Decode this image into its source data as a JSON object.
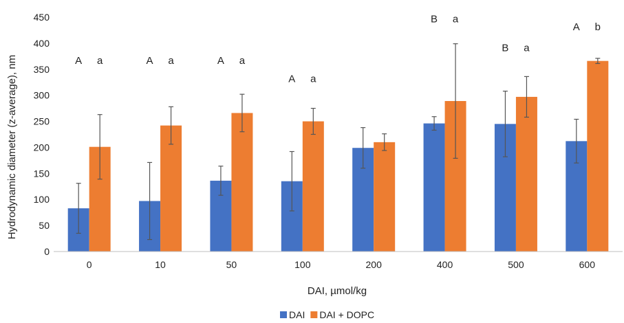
{
  "chart_data": {
    "type": "bar",
    "ylabel": "Hydrodynamic diameter (z-average), nm",
    "xlabel": "DAI, µmol/kg",
    "ylim": [
      0,
      450
    ],
    "yticks": [
      0,
      50,
      100,
      150,
      200,
      250,
      300,
      350,
      400,
      450
    ],
    "grid": false,
    "legend_position": "bottom",
    "categories": [
      "0",
      "10",
      "50",
      "100",
      "200",
      "400",
      "500",
      "600"
    ],
    "series": [
      {
        "name": "DAI",
        "color": "#4472C4",
        "values": [
          83,
          97,
          136,
          135,
          199,
          246,
          245,
          212
        ],
        "error": [
          48,
          74,
          28,
          57,
          39,
          13,
          63,
          42
        ]
      },
      {
        "name": "DAI + DOPC",
        "color": "#ED7D31",
        "values": [
          201,
          242,
          266,
          250,
          210,
          289,
          297,
          366
        ],
        "error": [
          62,
          36,
          36,
          25,
          16,
          110,
          39,
          5
        ]
      }
    ],
    "annotations": [
      {
        "category": "0",
        "upper": "A",
        "lower": "a",
        "y": 360
      },
      {
        "category": "10",
        "upper": "A",
        "lower": "a",
        "y": 360
      },
      {
        "category": "50",
        "upper": "A",
        "lower": "a",
        "y": 360
      },
      {
        "category": "100",
        "upper": "A",
        "lower": "a",
        "y": 325
      },
      {
        "category": "400",
        "upper": "B",
        "lower": "a",
        "y": 440
      },
      {
        "category": "500",
        "upper": "B",
        "lower": "a",
        "y": 385
      },
      {
        "category": "600",
        "upper": "A",
        "lower": "b",
        "y": 425
      }
    ]
  }
}
